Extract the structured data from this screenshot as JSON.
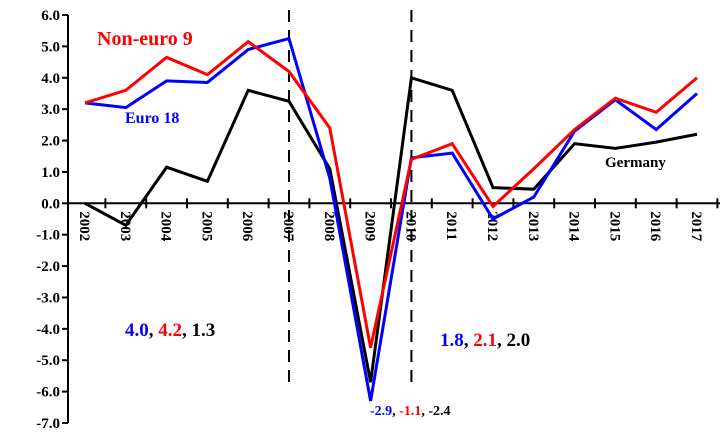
{
  "chart_data": {
    "type": "line",
    "categories": [
      "2002",
      "2003",
      "2004",
      "2005",
      "2006",
      "2007",
      "2008",
      "2009",
      "2010",
      "2011",
      "2012",
      "2013",
      "2014",
      "2015",
      "2016",
      "2017"
    ],
    "series": [
      {
        "name": "Euro 18",
        "color": "#0000ff",
        "values": [
          3.2,
          3.05,
          3.9,
          3.85,
          4.9,
          5.25,
          0.8,
          -6.3,
          1.45,
          1.6,
          -0.5,
          0.2,
          2.3,
          3.3,
          2.35,
          3.5
        ]
      },
      {
        "name": "Non-euro 9",
        "color": "#ff0000",
        "values": [
          3.2,
          3.6,
          4.65,
          4.1,
          5.15,
          4.2,
          2.4,
          -4.6,
          1.4,
          1.9,
          -0.1,
          1.1,
          2.35,
          3.35,
          2.9,
          4.0
        ]
      },
      {
        "name": "Germany",
        "color": "#000000",
        "values": [
          0.0,
          -0.7,
          1.15,
          0.7,
          3.6,
          3.25,
          1.1,
          -5.7,
          4.0,
          3.6,
          0.5,
          0.45,
          1.9,
          1.75,
          1.95,
          2.2
        ]
      }
    ],
    "ylim": [
      -7,
      6
    ],
    "yticks": [
      {
        "value": 6,
        "label": "6.0"
      },
      {
        "value": 5,
        "label": "5.0"
      },
      {
        "value": 4,
        "label": "4.0"
      },
      {
        "value": 3,
        "label": "3.0"
      },
      {
        "value": 2,
        "label": "2.0"
      },
      {
        "value": 1,
        "label": "1.0"
      },
      {
        "value": 0,
        "label": "0.0"
      },
      {
        "value": -1,
        "label": "-1.0"
      },
      {
        "value": -2,
        "label": "-2.0"
      },
      {
        "value": -3,
        "label": "-3.0"
      },
      {
        "value": -4,
        "label": "-4.0"
      },
      {
        "value": -5,
        "label": "-5.0"
      },
      {
        "value": -6,
        "label": "-6.0"
      },
      {
        "value": -7,
        "label": "-7.0"
      }
    ],
    "vlines": [
      "2007",
      "2010"
    ],
    "annotations": [
      {
        "parts": [
          "4.0",
          ", ",
          "4.2",
          ", ",
          "1.3"
        ],
        "colors": [
          "#0000ff",
          "#000000",
          "#ff0000",
          "#000000",
          "#000000"
        ]
      },
      {
        "parts": [
          "1.8",
          ", ",
          "2.1",
          ", ",
          "2.0"
        ],
        "colors": [
          "#0000ff",
          "#000000",
          "#ff0000",
          "#000000",
          "#000000"
        ]
      },
      {
        "parts": [
          "-2.9",
          ", ",
          "-1.1",
          ", ",
          "-2.4"
        ],
        "colors": [
          "#0000ff",
          "#000000",
          "#ff0000",
          "#000000",
          "#000000"
        ]
      }
    ]
  }
}
